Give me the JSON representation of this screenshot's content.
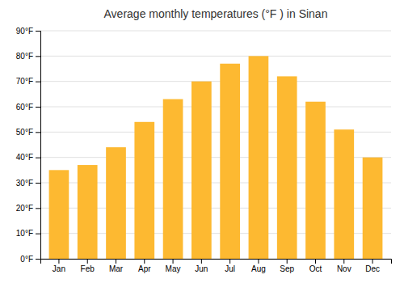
{
  "chart_data": {
    "type": "bar",
    "title": "Average monthly temperatures (°F ) in Sinan",
    "categories": [
      "Jan",
      "Feb",
      "Mar",
      "Apr",
      "May",
      "Jun",
      "Jul",
      "Aug",
      "Sep",
      "Oct",
      "Nov",
      "Dec"
    ],
    "values": [
      35,
      37,
      44,
      54,
      63,
      70,
      77,
      80,
      72,
      62,
      51,
      40
    ],
    "color": "#FDB931",
    "ylim": [
      0,
      90
    ],
    "yticks": [
      {
        "value": 0,
        "label": "0°F"
      },
      {
        "value": 10,
        "label": "10°F"
      },
      {
        "value": 20,
        "label": "20°F"
      },
      {
        "value": 30,
        "label": "30°F"
      },
      {
        "value": 40,
        "label": "40°F"
      },
      {
        "value": 50,
        "label": "50°F"
      },
      {
        "value": 60,
        "label": "60°F"
      },
      {
        "value": 70,
        "label": "70°F"
      },
      {
        "value": 80,
        "label": "80°F"
      },
      {
        "value": 90,
        "label": "90°F"
      }
    ],
    "grid": true
  }
}
